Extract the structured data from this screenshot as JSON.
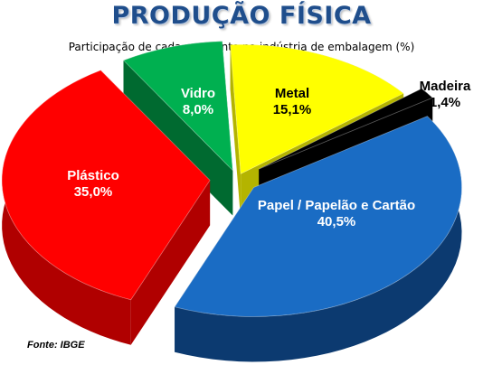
{
  "title": "PRODUÇÃO FÍSICA",
  "subtitle": "Participação de cada segmento na indústria de embalagem (%)",
  "source": "Fonte: IBGE",
  "chart_data": {
    "type": "pie",
    "title": "PRODUÇÃO FÍSICA",
    "subtitle": "Participação de cada segmento na indústria de embalagem (%)",
    "unit": "%",
    "style": "3d-exploded",
    "slices": [
      {
        "label": "Metal",
        "value": 15.1,
        "value_label": "15,1%",
        "color": "#ffff00",
        "side_color": "#b4b400",
        "label_color": "#000000"
      },
      {
        "label": "Madeira",
        "value": 1.4,
        "value_label": "1,4%",
        "color": "#000000",
        "side_color": "#000000",
        "label_color": "#000000"
      },
      {
        "label": "Papel / Papelão e Cartão",
        "value": 40.5,
        "value_label": "40,5%",
        "color": "#1a6cc4",
        "side_color": "#0c3a70",
        "label_color": "#ffffff"
      },
      {
        "label": "Plástico",
        "value": 35.0,
        "value_label": "35,0%",
        "color": "#ff0000",
        "side_color": "#b00000",
        "label_color": "#ffffff"
      },
      {
        "label": "Vidro",
        "value": 8.0,
        "value_label": "8,0%",
        "color": "#00b050",
        "side_color": "#006a30",
        "label_color": "#ffffff"
      }
    ]
  }
}
